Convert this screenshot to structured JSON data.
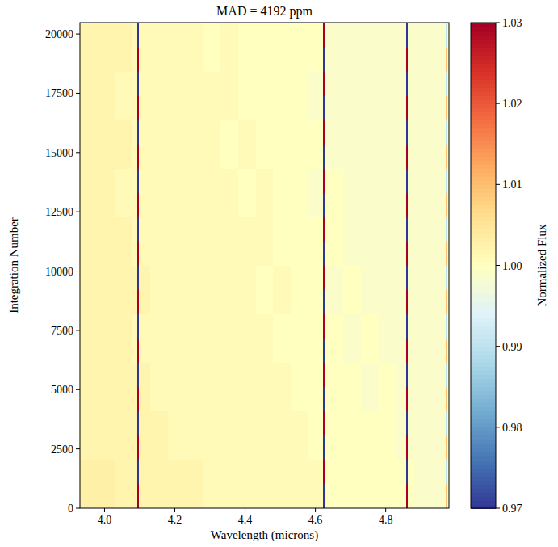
{
  "chart_data": {
    "type": "heatmap",
    "title": "MAD = 4192 ppm",
    "x_label": "Wavelength (microns)",
    "y_label": "Integration Number",
    "xlim": [
      3.93,
      4.98
    ],
    "ylim": [
      0,
      20480
    ],
    "xticks": [
      {
        "value": 4,
        "label": "4.0"
      },
      4.2,
      4.4,
      4.6,
      4.8
    ],
    "yticks": [
      0,
      2500,
      5000,
      7500,
      10000,
      12500,
      15000,
      17500,
      20000
    ],
    "x_edges": [
      3.93,
      3.98,
      4.03,
      4.08,
      4.13,
      4.18,
      4.23,
      4.28,
      4.33,
      4.38,
      4.43,
      4.48,
      4.53,
      4.58,
      4.63,
      4.68,
      4.73,
      4.78,
      4.83,
      4.88,
      4.93,
      4.98
    ],
    "y_edges": [
      0,
      2048,
      4096,
      6144,
      8192,
      10240,
      12288,
      14336,
      16384,
      18432,
      20480
    ],
    "values": [
      [
        1.003,
        1.003,
        1.002,
        1.002,
        1.002,
        1.002,
        1.002,
        1.001,
        1.001,
        1.001,
        1.001,
        1.001,
        1.001,
        1.001,
        1.0,
        1.0,
        1.0,
        1.0,
        1.0,
        0.999,
        0.999
      ],
      [
        1.002,
        1.002,
        1.002,
        1.002,
        1.002,
        1.001,
        1.001,
        1.001,
        1.001,
        1.001,
        1.001,
        1.001,
        1.001,
        1.0,
        1.0,
        1.0,
        1.0,
        1.0,
        0.999,
        0.999,
        0.999
      ],
      [
        1.002,
        1.002,
        1.002,
        1.002,
        1.001,
        1.001,
        1.001,
        1.001,
        1.001,
        1.001,
        1.001,
        1.001,
        1.0,
        1.0,
        1.0,
        1.0,
        0.999,
        1.0,
        0.999,
        0.999,
        0.999
      ],
      [
        1.002,
        1.002,
        1.002,
        1.001,
        1.001,
        1.001,
        1.001,
        1.001,
        1.001,
        1.001,
        1.001,
        1.0,
        1.0,
        1.0,
        1.0,
        0.999,
        1.0,
        0.999,
        0.999,
        0.999,
        0.999
      ],
      [
        1.002,
        1.002,
        1.002,
        1.002,
        1.001,
        1.001,
        1.001,
        1.001,
        1.001,
        1.001,
        1.0,
        1.001,
        1.0,
        1.0,
        0.999,
        1.0,
        0.999,
        0.999,
        0.999,
        0.999,
        0.999
      ],
      [
        1.002,
        1.002,
        1.002,
        1.001,
        1.001,
        1.001,
        1.001,
        1.001,
        1.001,
        1.001,
        1.001,
        1.0,
        1.0,
        1.0,
        1.0,
        0.999,
        0.999,
        0.999,
        0.999,
        0.999,
        0.999
      ],
      [
        1.002,
        1.002,
        1.001,
        1.001,
        1.001,
        1.001,
        1.001,
        1.001,
        1.001,
        1.0,
        1.001,
        1.0,
        1.0,
        0.999,
        1.0,
        0.999,
        0.999,
        0.999,
        0.999,
        0.999,
        0.999
      ],
      [
        1.002,
        1.002,
        1.002,
        1.001,
        1.001,
        1.001,
        1.001,
        1.001,
        1.0,
        1.001,
        1.0,
        1.0,
        1.0,
        1.0,
        0.999,
        0.999,
        0.999,
        0.999,
        0.999,
        0.999,
        0.999
      ],
      [
        1.002,
        1.002,
        1.001,
        1.001,
        1.001,
        1.001,
        1.001,
        1.001,
        1.001,
        1.0,
        1.0,
        1.0,
        1.0,
        0.999,
        0.999,
        0.999,
        0.999,
        0.999,
        0.999,
        0.999,
        0.999
      ],
      [
        1.002,
        1.002,
        1.002,
        1.001,
        1.001,
        1.001,
        1.001,
        1.0,
        1.001,
        1.0,
        1.0,
        1.0,
        1.0,
        1.0,
        0.999,
        0.999,
        0.999,
        0.999,
        0.999,
        0.999,
        0.999
      ]
    ],
    "bad_columns": [
      {
        "wavelength": 4.095,
        "values": [
          1.03,
          0.97,
          1.03,
          0.97,
          1.03,
          0.97,
          1.03,
          0.97,
          1.03,
          0.97,
          1.03,
          0.97,
          1.03,
          0.97,
          1.03,
          0.97,
          1.03,
          0.97,
          1.03,
          0.97
        ]
      },
      {
        "wavelength": 4.625,
        "values": [
          0.97,
          1.03,
          0.97,
          1.03,
          0.97,
          1.03,
          0.97,
          1.03,
          0.97,
          1.03,
          0.97,
          1.03,
          0.97,
          1.03,
          0.97,
          1.03,
          0.97,
          1.03,
          0.97,
          1.03
        ]
      },
      {
        "wavelength": 4.86,
        "values": [
          1.03,
          0.97,
          1.03,
          0.97,
          1.03,
          0.97,
          1.03,
          0.97,
          1.03,
          0.97,
          1.03,
          0.97,
          1.03,
          0.97,
          1.03,
          0.97,
          1.03,
          0.97,
          1.03,
          0.97
        ]
      },
      {
        "wavelength": 4.972,
        "values": [
          1.01,
          0.99,
          1.01,
          0.99,
          1.01,
          0.99,
          1.01,
          0.99,
          1.01,
          0.99,
          1.01,
          0.99,
          1.01,
          0.99,
          1.01,
          0.99,
          1.01,
          0.99,
          1.01,
          0.99
        ]
      }
    ],
    "colorbar": {
      "label": "Normalized Flux",
      "range": [
        0.97,
        1.03
      ],
      "ticks": [
        0.97,
        0.98,
        0.99,
        {
          "value": 1,
          "label": "1.00"
        },
        1.01,
        1.02,
        1.03
      ]
    }
  }
}
